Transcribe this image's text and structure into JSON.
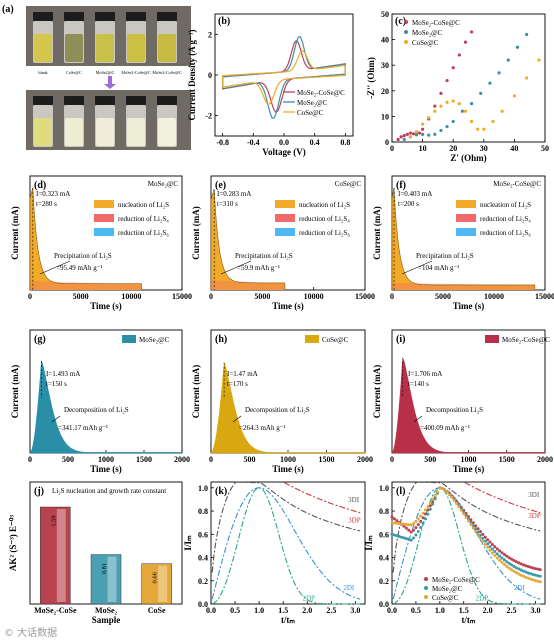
{
  "watermark": "© 大话数据",
  "chart_data": [
    {
      "panel": "a",
      "type": "photo",
      "top_labels": [
        "blank",
        "CoSe@C",
        "MoSe2@C",
        "MoSe2-CoSe@C",
        "MoSe2-CoSe@C"
      ],
      "vial_colors_top": [
        "#d3c64a",
        "#8e8f57",
        "#c9c047",
        "#cbbf44",
        "#c6ba40"
      ],
      "vial_colors_bottom": [
        "#dedc7e",
        "#ededd2",
        "#f0eed8",
        "#efeed6",
        "#f2f1dd"
      ]
    },
    {
      "panel": "b",
      "type": "line",
      "xlabel": "Voltage (V)",
      "ylabel": "Current Density (A g⁻¹)",
      "xlim": [
        -0.9,
        0.9
      ],
      "ylim": [
        -3,
        3
      ],
      "xticks": [
        -0.8,
        -0.4,
        0.0,
        0.4,
        0.8
      ],
      "yticks": [
        -2,
        0,
        2
      ],
      "legend": "inside-right",
      "series": [
        {
          "name": "MoSe₂-CoSe@C",
          "color": "#c0405a",
          "ox": 0.16,
          "ored": -0.1,
          "pox": 1.5,
          "pred": -1.6,
          "amp": 1.0
        },
        {
          "name": "MoSe₂@C",
          "color": "#3f8fa6",
          "ox": 0.2,
          "ored": -0.14,
          "pox": 1.7,
          "pred": -1.9,
          "amp": 1.0
        },
        {
          "name": "CoSe@C",
          "color": "#f2aa2a",
          "ox": 0.24,
          "ored": -0.2,
          "pox": 1.0,
          "pred": -1.2,
          "amp": 0.75
        }
      ]
    },
    {
      "panel": "c",
      "type": "scatter",
      "xlabel": "Z' (Ohm)",
      "ylabel": "-Z'' (Ohm)",
      "xlim": [
        0,
        50
      ],
      "ylim": [
        0,
        50
      ],
      "xticks": [
        0,
        10,
        20,
        30,
        40,
        50
      ],
      "yticks": [
        0,
        10,
        20,
        30,
        40,
        50
      ],
      "legend": "top-right",
      "series": [
        {
          "name": "MoSe₂-CoSe@C",
          "color": "#c0405a",
          "points": [
            [
              2,
              1
            ],
            [
              3,
              2
            ],
            [
              4,
              2.5
            ],
            [
              5,
              3
            ],
            [
              6,
              3.5
            ],
            [
              7,
              3.2
            ],
            [
              8,
              3
            ],
            [
              9,
              3.5
            ],
            [
              10,
              5
            ],
            [
              12,
              9
            ],
            [
              14,
              14
            ],
            [
              16,
              19
            ],
            [
              18,
              24
            ],
            [
              20,
              29
            ],
            [
              22,
              34
            ],
            [
              24,
              39
            ],
            [
              26,
              43
            ]
          ]
        },
        {
          "name": "MoSe₂@C",
          "color": "#3f8fa6",
          "points": [
            [
              4,
              1
            ],
            [
              6,
              2
            ],
            [
              8,
              2.8
            ],
            [
              10,
              3
            ],
            [
              12,
              2.7
            ],
            [
              14,
              3
            ],
            [
              16,
              4.5
            ],
            [
              18,
              6
            ],
            [
              20,
              8
            ],
            [
              23,
              12
            ],
            [
              26,
              15
            ],
            [
              29,
              19
            ],
            [
              32,
              23
            ],
            [
              35,
              27
            ],
            [
              38,
              32
            ],
            [
              41,
              37
            ],
            [
              44,
              42
            ]
          ]
        },
        {
          "name": "CoSe@C",
          "color": "#f2aa2a",
          "points": [
            [
              6,
              2
            ],
            [
              8,
              4
            ],
            [
              10,
              7
            ],
            [
              12,
              9.5
            ],
            [
              14,
              12
            ],
            [
              16,
              14
            ],
            [
              18,
              15.5
            ],
            [
              20,
              16
            ],
            [
              22,
              15
            ],
            [
              24,
              12
            ],
            [
              26,
              8
            ],
            [
              28,
              5
            ],
            [
              30,
              5
            ],
            [
              33,
              8
            ],
            [
              36,
              12
            ],
            [
              40,
              18
            ],
            [
              44,
              25
            ],
            [
              48,
              32
            ]
          ]
        }
      ]
    },
    {
      "panel": "d",
      "type": "area",
      "title": "MoSe₂@C",
      "xlabel": "Time (s)",
      "ylabel": "Current (mA)",
      "xlim": [
        0,
        15000
      ],
      "ylim": [
        0,
        0.36
      ],
      "xticks": [
        0,
        5000,
        10000,
        15000
      ],
      "peak": "I=0.323 mA",
      "t_label": "t=280 s",
      "peak_x": 280,
      "peak_y": 0.323,
      "end_x": 11000,
      "base_y": 0.02,
      "legend": [
        "nucleation of Li₂S",
        "reduction of Li₂S₄",
        "reduction of Li₂S₆"
      ],
      "legend_colors": [
        "#f2aa2a",
        "#f06a6a",
        "#4db8f2"
      ],
      "annotation": "Precipitation of Li₂S",
      "capacity": "=95.49 mAh g⁻¹"
    },
    {
      "panel": "e",
      "type": "area",
      "title": "CoSe@C",
      "xlabel": "Time (s)",
      "ylabel": "Current (mA)",
      "xlim": [
        0,
        15000
      ],
      "ylim": [
        0,
        0.32
      ],
      "xticks": [
        0,
        5000,
        10000,
        15000
      ],
      "peak": "I=0.283 mA",
      "t_label": "t=310 s",
      "peak_x": 310,
      "peak_y": 0.283,
      "end_x": 7200,
      "base_y": 0.02,
      "legend": [
        "nucleation of Li₂S",
        "reduction of Li₂S₄",
        "reduction of Li₂S₆"
      ],
      "legend_colors": [
        "#f2aa2a",
        "#f06a6a",
        "#4db8f2"
      ],
      "annotation": "Precipitation of Li₂S",
      "capacity": "=59.9 mAh g⁻¹"
    },
    {
      "panel": "f",
      "type": "area",
      "title": "MoSe₂-CoSe@C",
      "xlabel": "Time (s)",
      "ylabel": "Current (mA)",
      "xlim": [
        0,
        15000
      ],
      "ylim": [
        0,
        0.45
      ],
      "xticks": [
        0,
        5000,
        10000,
        15000
      ],
      "peak": "I=0.403 mA",
      "t_label": "t=200 s",
      "peak_x": 200,
      "peak_y": 0.403,
      "end_x": 14000,
      "base_y": 0.02,
      "legend": [
        "nucleation of Li₂S",
        "reduction of Li₂S₄",
        "reduction of Li₂S₆"
      ],
      "legend_colors": [
        "#f2aa2a",
        "#f06a6a",
        "#4db8f2"
      ],
      "annotation": "Precipitation of Li₂S",
      "capacity": "=104 mAh g⁻¹"
    },
    {
      "panel": "g",
      "type": "area",
      "title": "MoSe₂@C",
      "legend_colors": [
        "#2a8fa6"
      ],
      "xlabel": "Time (s)",
      "ylabel": "Current (mA)",
      "xlim": [
        0,
        2000
      ],
      "ylim": [
        0,
        2.0
      ],
      "xticks": [
        0,
        500,
        1000,
        1500,
        2000
      ],
      "peak": "I=1.493 mA",
      "t_label": "t=150 s",
      "peak_x": 150,
      "peak_y": 1.493,
      "annotation": "Decomposition of Li₂S",
      "capacity": "=341.17 mAh g⁻¹"
    },
    {
      "panel": "h",
      "type": "area",
      "title": "CoSe@C",
      "legend_colors": [
        "#d9a70f"
      ],
      "xlabel": "Time (s)",
      "ylabel": "Current (mA)",
      "xlim": [
        0,
        2000
      ],
      "ylim": [
        0,
        2.0
      ],
      "xticks": [
        0,
        500,
        1000,
        1500,
        2000
      ],
      "peak": "I=1.47 mA",
      "t_label": "t=170 s",
      "peak_x": 170,
      "peak_y": 1.47,
      "annotation": "Decomposition of Li₂S",
      "capacity": "=264.3 mAh g⁻¹"
    },
    {
      "panel": "i",
      "type": "area",
      "title": "MoSe₂-CoSe@C",
      "legend_colors": [
        "#b83048"
      ],
      "xlabel": "Time (s)",
      "ylabel": "Current (mA)",
      "xlim": [
        0,
        2000
      ],
      "ylim": [
        0,
        2.2
      ],
      "xticks": [
        0,
        500,
        1000,
        1500,
        2000
      ],
      "peak": "I=1.706 mA",
      "t_label": "t=140 s",
      "peak_x": 140,
      "peak_y": 1.706,
      "annotation": "Decomposition Li₂S",
      "capacity": "=400.09 mAh g⁻¹"
    },
    {
      "panel": "j",
      "type": "bar",
      "title": "Li₂S nucleation and growth rate constant",
      "xlabel": "Sample",
      "ylabel": "AK² (S⁻³) E⁻⁰³",
      "categories": [
        "MoSe₂-CoSe",
        "MoSe₂",
        "CoSe"
      ],
      "values": [
        1.59,
        0.81,
        0.66
      ],
      "value_labels": [
        "1.59",
        "0.81",
        "0.66"
      ],
      "colors": [
        "#b8424f",
        "#4aa0b3",
        "#e4a83a"
      ],
      "ylim": [
        0,
        2.0
      ]
    },
    {
      "panel": "k",
      "type": "line",
      "xlabel": "t/tₘ",
      "ylabel": "I/Iₘ",
      "xlim": [
        0,
        3.2
      ],
      "ylim": [
        0,
        1.05
      ],
      "xticks": [
        0.0,
        0.5,
        1.0,
        1.5,
        2.0,
        2.5,
        3.0
      ],
      "yticks": [
        0.0,
        0.2,
        0.4,
        0.6,
        0.8,
        1.0
      ],
      "series": [
        {
          "name": "3DI",
          "color": "#555555",
          "dash": "6,2,2,2",
          "kind": "3DI"
        },
        {
          "name": "3DP",
          "color": "#d03838",
          "dash": "6,2,2,2",
          "kind": "3DP"
        },
        {
          "name": "2DI",
          "color": "#3a8fd6",
          "dash": "6,2,2,2",
          "kind": "2DI"
        },
        {
          "name": "2DP",
          "color": "#2aa68a",
          "dash": "6,2,2,2",
          "kind": "2DP"
        }
      ]
    },
    {
      "panel": "l",
      "type": "line",
      "xlabel": "t/tₘ",
      "ylabel": "I/Iₘ",
      "xlim": [
        0,
        3.2
      ],
      "ylim": [
        0,
        1.05
      ],
      "xticks": [
        0.0,
        0.5,
        1.0,
        1.5,
        2.0,
        2.5,
        3.0
      ],
      "yticks": [
        0.0,
        0.2,
        0.4,
        0.6,
        0.8,
        1.0
      ],
      "legend": "lower-middle",
      "series": [
        {
          "name": "MoSe₂-CoSe@C",
          "color": "#b8424f",
          "tail": 0.26,
          "start": 0.75,
          "dip": 0.62
        },
        {
          "name": "MoSe₂@C",
          "color": "#3a9aaa",
          "tail": 0.2,
          "start": 0.6,
          "dip": 0.55
        },
        {
          "name": "CoSe@C",
          "color": "#e4a83a",
          "tail": 0.15,
          "start": 0.7,
          "dip": 0.68
        }
      ]
    }
  ]
}
